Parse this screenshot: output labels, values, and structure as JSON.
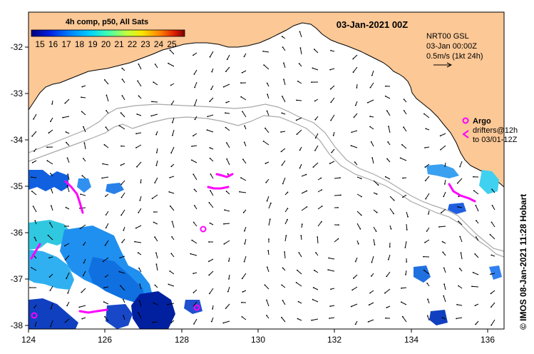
{
  "title": "03-Jan-2021 00Z",
  "colorbar": {
    "caption": "4h comp, p50, All Sats",
    "ticks": [
      "15",
      "16",
      "17",
      "18",
      "19",
      "20",
      "21",
      "22",
      "23",
      "24",
      "25"
    ],
    "colors": [
      "#000080",
      "#0010c8",
      "#0050ff",
      "#0090ff",
      "#00d0ff",
      "#40ffc0",
      "#a0ff60",
      "#f0f000",
      "#ffa000",
      "#ff5000",
      "#c00000",
      "#800000"
    ]
  },
  "current_legend": {
    "line1": "NRT00 GSL",
    "line2": "03-Jan 00:00Z",
    "line3": "0.5m/s (1kt 24h)"
  },
  "argo_legend": {
    "argo": "Argo",
    "drifters_line1": "drifters@12h",
    "drifters_line2": "to 03/01-12Z"
  },
  "credit": "© IMOS 08-Jan-2021 11:28 Hobart",
  "axes": {
    "y_ticks": [
      "-32",
      "-33",
      "-34",
      "-35",
      "-36",
      "-37",
      "-38"
    ],
    "x_ticks": [
      "124",
      "126",
      "128",
      "130",
      "132",
      "134",
      "136"
    ]
  },
  "colors": {
    "land": "#fcc896",
    "coast": "#000000",
    "isobath": "#a8a8a8",
    "argo": "#ff00ff",
    "arrow": "#000000"
  }
}
